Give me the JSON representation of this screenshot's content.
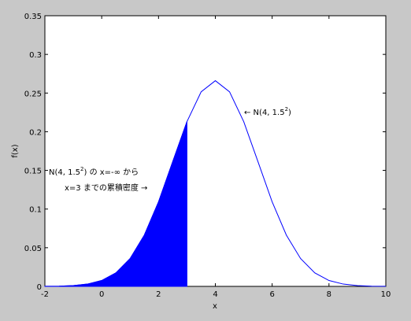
{
  "chart_data": {
    "type": "line",
    "xlabel": "x",
    "ylabel": "f(x)",
    "x": [
      -2,
      -1.5,
      -1,
      -0.5,
      0,
      0.5,
      1,
      1.5,
      2,
      2.5,
      3,
      3.5,
      4,
      4.5,
      5,
      5.5,
      6,
      6.5,
      7,
      7.5,
      8,
      8.5,
      9,
      9.5,
      10
    ],
    "series": [
      {
        "color": "#0000ff",
        "values": [
          0.0001,
          0.0003,
          0.001,
          0.003,
          0.0076,
          0.0175,
          0.036,
          0.0663,
          0.1093,
          0.1613,
          0.213,
          0.2516,
          0.266,
          0.2516,
          0.213,
          0.1613,
          0.1093,
          0.0663,
          0.036,
          0.0175,
          0.0076,
          0.003,
          0.001,
          0.0003,
          0.0001
        ]
      }
    ],
    "area": {
      "color": "#0000ff",
      "x": [
        -2,
        -1.5,
        -1,
        -0.5,
        0,
        0.5,
        1,
        1.5,
        2,
        2.5,
        3
      ],
      "values": [
        0.0001,
        0.0003,
        0.001,
        0.003,
        0.0076,
        0.0175,
        0.036,
        0.0663,
        0.1093,
        0.1613,
        0.213
      ]
    },
    "xlim": [
      -2,
      10
    ],
    "ylim": [
      0,
      0.35
    ],
    "xticks": [
      -2,
      0,
      2,
      4,
      6,
      8,
      10
    ],
    "yticks": [
      0,
      0.05,
      0.1,
      0.15,
      0.2,
      0.25,
      0.3,
      0.35
    ],
    "annotations": [
      {
        "lines": [
          [
            "← N(4, 1.5",
            "2",
            ")"
          ]
        ]
      },
      {
        "lines": [
          [
            "N(4, 1.5",
            "2",
            ") の x=-∞ から"
          ],
          [
            "x=3 までの累積密度 →"
          ]
        ]
      }
    ]
  }
}
